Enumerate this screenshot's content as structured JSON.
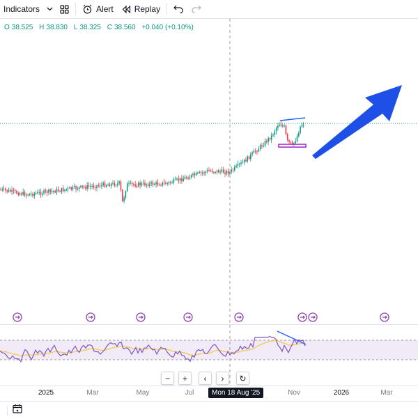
{
  "toolbar": {
    "indicators_label": "Indicators",
    "alert_label": "Alert",
    "replay_label": "Replay"
  },
  "ohlc": {
    "open_key": "O",
    "open": "38.525",
    "high_key": "H",
    "high": "38.830",
    "low_key": "L",
    "low": "38.325",
    "close_key": "C",
    "close": "38.560",
    "change": "+0.040 (+0.10%)"
  },
  "time_axis": {
    "labels": [
      "2025",
      "Mar",
      "May",
      "Jul",
      "Nov",
      "2026",
      "Mar"
    ],
    "crosshair_label": "Mon 18 Aug '25"
  },
  "colors": {
    "up": "#089981",
    "down": "#f23645",
    "rsi_line": "#7e57c2",
    "rsi_ma": "#f7c548",
    "arrow": "#1e4fe6",
    "drawing_blue": "#2962ff",
    "drawing_magenta": "#a020c8"
  },
  "icons": {
    "chevron": "chevron-down-icon",
    "layouts": "grid-icon",
    "alert": "alarm-clock-icon",
    "replay": "rewind-icon",
    "undo": "undo-icon",
    "redo": "redo-icon",
    "zoom_out": "minus-icon",
    "zoom_in": "plus-icon",
    "scroll_left": "chevron-left-icon",
    "scroll_right": "chevron-right-icon",
    "reset": "reset-icon",
    "date_range": "calendar-icon",
    "event": "event-marker-icon"
  },
  "nav": {
    "zoom_out": "−",
    "zoom_in": "+",
    "scroll_left": "‹",
    "scroll_right": "›",
    "reset": "↻"
  }
}
